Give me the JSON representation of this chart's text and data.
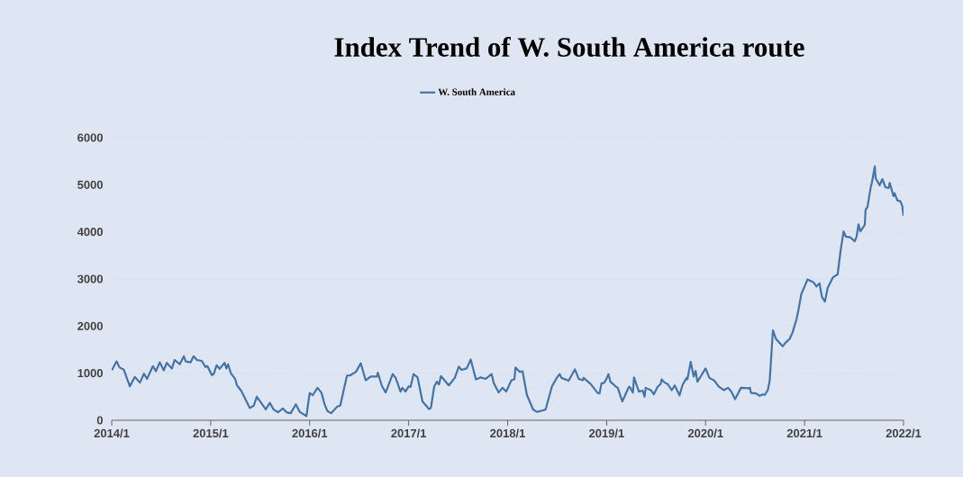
{
  "chart_data": {
    "type": "line",
    "title": "Index Trend of W. South America  route",
    "x": [
      "2014-01-01",
      "2014-01-19",
      "2014-01-30",
      "2014-02-14",
      "2014-03-09",
      "2014-03-27",
      "2014-04-15",
      "2014-04-30",
      "2014-05-11",
      "2014-06-02",
      "2014-06-13",
      "2014-06-27",
      "2014-07-12",
      "2014-07-23",
      "2014-08-11",
      "2014-08-21",
      "2014-09-09",
      "2014-09-24",
      "2014-10-01",
      "2014-10-19",
      "2014-10-30",
      "2014-11-11",
      "2014-11-29",
      "2014-12-13",
      "2014-12-20",
      "2015-01-05",
      "2015-01-12",
      "2015-01-23",
      "2015-02-03",
      "2015-02-21",
      "2015-02-28",
      "2015-03-06",
      "2015-03-17",
      "2015-04-01",
      "2015-04-08",
      "2015-04-23",
      "2015-05-03",
      "2015-05-25",
      "2015-06-09",
      "2015-06-20",
      "2015-07-05",
      "2015-07-23",
      "2015-08-07",
      "2015-08-21",
      "2015-09-06",
      "2015-09-24",
      "2015-10-08",
      "2015-10-23",
      "2015-11-11",
      "2015-11-25",
      "2015-12-20",
      "2016-01-01",
      "2016-01-12",
      "2016-01-30",
      "2016-02-14",
      "2016-02-25",
      "2016-03-06",
      "2016-03-20",
      "2016-04-12",
      "2016-04-23",
      "2016-05-18",
      "2016-05-29",
      "2016-06-20",
      "2016-07-08",
      "2016-07-26",
      "2016-08-14",
      "2016-09-06",
      "2016-09-09",
      "2016-09-24",
      "2016-10-08",
      "2016-11-03",
      "2016-11-14",
      "2016-12-02",
      "2016-12-09",
      "2016-12-20",
      "2017-01-01",
      "2017-01-08",
      "2017-01-19",
      "2017-02-03",
      "2017-02-21",
      "2017-03-17",
      "2017-03-24",
      "2017-04-05",
      "2017-04-15",
      "2017-04-23",
      "2017-04-30",
      "2017-05-29",
      "2017-06-20",
      "2017-07-05",
      "2017-07-15",
      "2017-08-03",
      "2017-08-18",
      "2017-09-06",
      "2017-09-24",
      "2017-10-12",
      "2017-11-03",
      "2017-11-11",
      "2017-11-29",
      "2017-12-13",
      "2017-12-27",
      "2018-01-15",
      "2018-01-26",
      "2018-01-30",
      "2018-02-14",
      "2018-02-25",
      "2018-03-13",
      "2018-04-05",
      "2018-04-19",
      "2018-05-11",
      "2018-05-21",
      "2018-06-13",
      "2018-07-01",
      "2018-07-12",
      "2018-07-19",
      "2018-08-14",
      "2018-09-06",
      "2018-09-20",
      "2018-10-05",
      "2018-10-08",
      "2018-11-03",
      "2018-11-29",
      "2018-12-06",
      "2018-12-13",
      "2018-12-24",
      "2019-01-01",
      "2019-01-08",
      "2019-01-15",
      "2019-02-03",
      "2019-02-11",
      "2019-02-28",
      "2019-03-24",
      "2019-03-27",
      "2019-04-08",
      "2019-04-12",
      "2019-04-30",
      "2019-05-14",
      "2019-05-21",
      "2019-05-25",
      "2019-06-13",
      "2019-06-24",
      "2019-07-08",
      "2019-07-19",
      "2019-07-23",
      "2019-08-03",
      "2019-08-14",
      "2019-08-29",
      "2019-09-09",
      "2019-09-27",
      "2019-10-08",
      "2019-10-23",
      "2019-10-26",
      "2019-11-07",
      "2019-11-18",
      "2019-11-25",
      "2019-12-02",
      "2020-01-01",
      "2020-01-15",
      "2020-02-03",
      "2020-02-18",
      "2020-03-09",
      "2020-03-24",
      "2020-04-05",
      "2020-04-19",
      "2020-05-11",
      "2020-06-06",
      "2020-06-13",
      "2020-06-17",
      "2020-07-05",
      "2020-07-19",
      "2020-07-30",
      "2020-08-07",
      "2020-08-18",
      "2020-08-25",
      "2020-09-06",
      "2020-09-17",
      "2020-10-12",
      "2020-10-23",
      "2020-11-07",
      "2020-11-18",
      "2020-11-25",
      "2020-12-02",
      "2020-12-09",
      "2020-12-20",
      "2021-01-01",
      "2021-01-12",
      "2021-02-03",
      "2021-02-14",
      "2021-02-25",
      "2021-03-06",
      "2021-03-17",
      "2021-03-27",
      "2021-04-15",
      "2021-05-03",
      "2021-05-14",
      "2021-05-25",
      "2021-06-02",
      "2021-06-20",
      "2021-07-05",
      "2021-07-12",
      "2021-07-19",
      "2021-07-26",
      "2021-08-11",
      "2021-08-14",
      "2021-08-21",
      "2021-09-02",
      "2021-09-06",
      "2021-09-17",
      "2021-09-20",
      "2021-10-05",
      "2021-10-15",
      "2021-10-26",
      "2021-11-07",
      "2021-11-11",
      "2021-11-25",
      "2021-11-29",
      "2021-12-09",
      "2021-12-20",
      "2021-12-27",
      "2022-01-01"
    ],
    "series": [
      {
        "name": "W. South America",
        "color": "#4673a6",
        "values": [
          1060,
          1250,
          1120,
          1080,
          720,
          920,
          800,
          990,
          880,
          1150,
          1040,
          1230,
          1060,
          1220,
          1100,
          1280,
          1190,
          1360,
          1250,
          1230,
          1360,
          1280,
          1260,
          1130,
          1150,
          960,
          980,
          1170,
          1090,
          1220,
          1100,
          1190,
          990,
          880,
          740,
          630,
          520,
          260,
          310,
          500,
          380,
          230,
          370,
          230,
          170,
          250,
          170,
          150,
          340,
          180,
          90,
          580,
          530,
          690,
          580,
          340,
          200,
          150,
          290,
          310,
          950,
          950,
          1030,
          1210,
          850,
          930,
          930,
          1010,
          730,
          590,
          980,
          900,
          610,
          690,
          610,
          720,
          710,
          980,
          910,
          400,
          240,
          260,
          710,
          820,
          760,
          940,
          740,
          900,
          1140,
          1070,
          1100,
          1290,
          870,
          910,
          880,
          980,
          790,
          590,
          690,
          610,
          850,
          870,
          1120,
          1030,
          1040,
          540,
          230,
          180,
          210,
          230,
          710,
          900,
          980,
          900,
          840,
          1080,
          880,
          850,
          900,
          770,
          580,
          570,
          780,
          800,
          890,
          980,
          820,
          720,
          690,
          400,
          710,
          710,
          590,
          910,
          610,
          630,
          500,
          690,
          640,
          550,
          710,
          770,
          870,
          800,
          770,
          640,
          740,
          530,
          750,
          900,
          870,
          1240,
          930,
          1050,
          820,
          1100,
          900,
          840,
          720,
          640,
          690,
          610,
          450,
          690,
          680,
          690,
          580,
          570,
          520,
          550,
          540,
          640,
          840,
          1910,
          1730,
          1570,
          1650,
          1730,
          1870,
          2010,
          2140,
          2330,
          2680,
          2840,
          2990,
          2930,
          2840,
          2910,
          2620,
          2520,
          2810,
          3030,
          3100,
          3610,
          4010,
          3900,
          3880,
          3800,
          3900,
          4160,
          4010,
          4150,
          4470,
          4530,
          4950,
          5040,
          5390,
          5140,
          4990,
          5120,
          4950,
          4930,
          5040,
          4760,
          4820,
          4670,
          4650,
          4560,
          4340
        ]
      }
    ],
    "xlim": [
      "2014-01",
      "2022-01"
    ],
    "xticks": [
      {
        "value": "2014-01",
        "label": "2014/1"
      },
      {
        "value": "2015-01",
        "label": "2015/1"
      },
      {
        "value": "2016-01",
        "label": "2016/1"
      },
      {
        "value": "2017-01",
        "label": "2017/1"
      },
      {
        "value": "2018-01",
        "label": "2018/1"
      },
      {
        "value": "2019-01",
        "label": "2019/1"
      },
      {
        "value": "2020-01",
        "label": "2020/1"
      },
      {
        "value": "2021-01",
        "label": "2021/1"
      },
      {
        "value": "2022-01",
        "label": "2022/1"
      }
    ],
    "ylim": [
      0,
      6000
    ],
    "yticks": [
      0,
      1000,
      2000,
      3000,
      4000,
      5000,
      6000
    ],
    "grid": "y",
    "legend": "top",
    "marker": "none",
    "line_style": "solid"
  }
}
